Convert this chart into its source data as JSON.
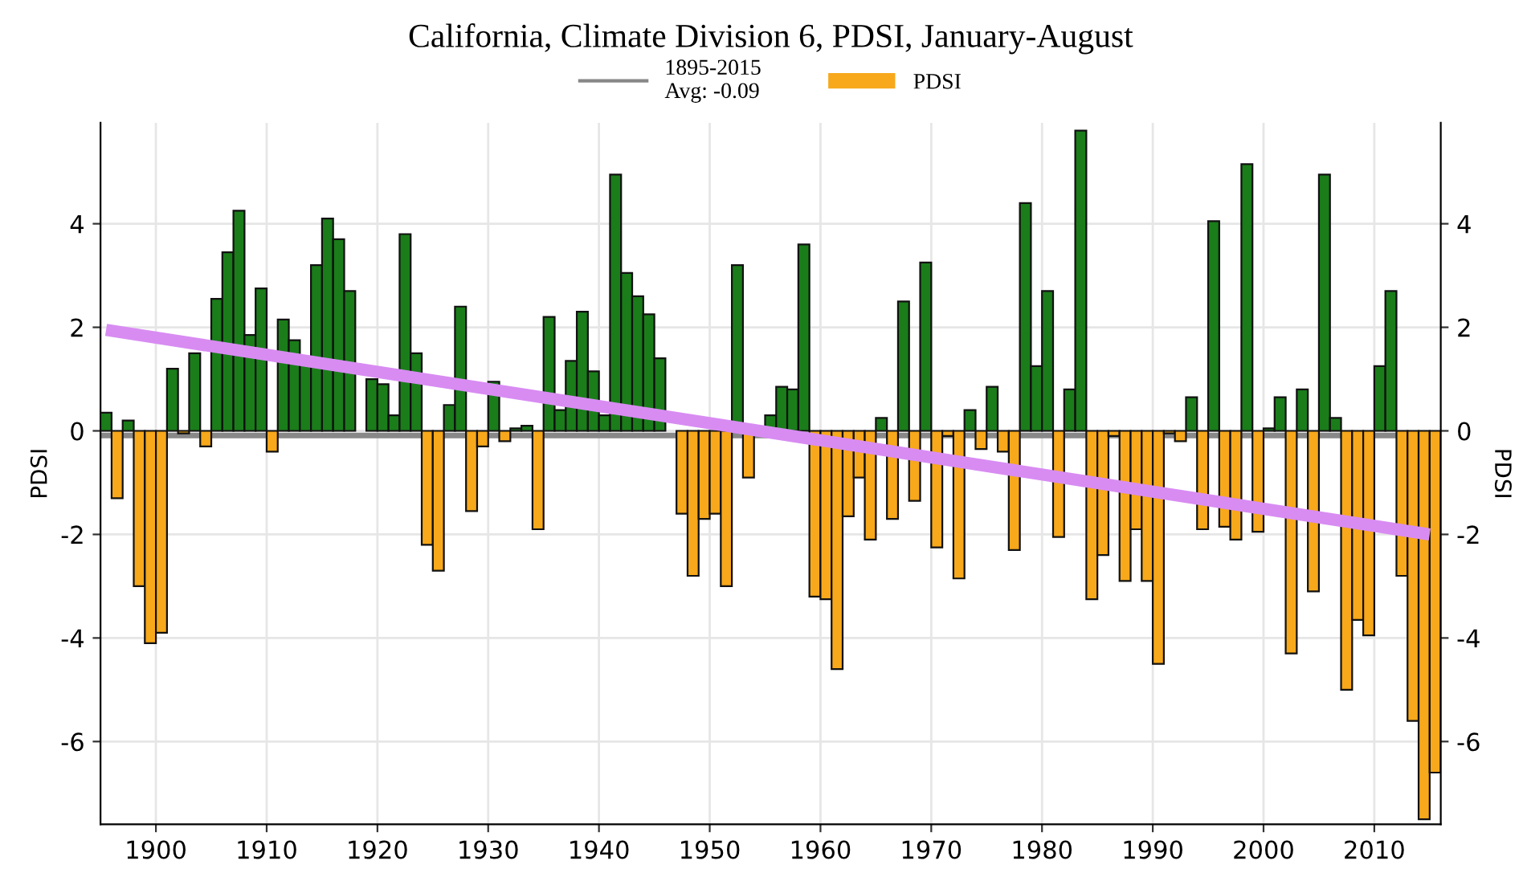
{
  "chart_data": {
    "type": "bar",
    "title": "California, Climate Division 6, PDSI, January-August",
    "ylabel": "PDSI",
    "y2label": "PDSI",
    "x": [
      1895,
      1896,
      1897,
      1898,
      1899,
      1900,
      1901,
      1902,
      1903,
      1904,
      1905,
      1906,
      1907,
      1908,
      1909,
      1910,
      1911,
      1912,
      1913,
      1914,
      1915,
      1916,
      1917,
      1918,
      1919,
      1920,
      1921,
      1922,
      1923,
      1924,
      1925,
      1926,
      1927,
      1928,
      1929,
      1930,
      1931,
      1932,
      1933,
      1934,
      1935,
      1936,
      1937,
      1938,
      1939,
      1940,
      1941,
      1942,
      1943,
      1944,
      1945,
      1946,
      1947,
      1948,
      1949,
      1950,
      1951,
      1952,
      1953,
      1954,
      1955,
      1956,
      1957,
      1958,
      1959,
      1960,
      1961,
      1962,
      1963,
      1964,
      1965,
      1966,
      1967,
      1968,
      1969,
      1970,
      1971,
      1972,
      1973,
      1974,
      1975,
      1976,
      1977,
      1978,
      1979,
      1980,
      1981,
      1982,
      1983,
      1984,
      1985,
      1986,
      1987,
      1988,
      1989,
      1990,
      1991,
      1992,
      1993,
      1994,
      1995,
      1996,
      1997,
      1998,
      1999,
      2000,
      2001,
      2002,
      2003,
      2004,
      2005,
      2006,
      2007,
      2008,
      2009,
      2010,
      2011,
      2012,
      2013,
      2014,
      2015
    ],
    "series": [
      {
        "name": "PDSI",
        "color": "#f7a81b",
        "values": [
          0.35,
          -1.3,
          0.2,
          -3.0,
          -4.1,
          -3.9,
          1.2,
          -0.05,
          1.5,
          -0.3,
          2.55,
          3.45,
          4.25,
          1.85,
          2.75,
          -0.4,
          2.15,
          1.75,
          1.3,
          3.2,
          4.1,
          3.7,
          2.7,
          null,
          1.0,
          0.9,
          0.3,
          3.8,
          1.5,
          -2.2,
          -2.7,
          0.5,
          2.4,
          -1.55,
          -0.3,
          0.95,
          -0.2,
          0.05,
          0.1,
          -1.9,
          2.2,
          0.4,
          1.35,
          2.3,
          1.15,
          0.3,
          4.95,
          3.05,
          2.6,
          2.25,
          1.4,
          null,
          -1.6,
          -2.8,
          -1.7,
          -1.6,
          -3.0,
          3.2,
          -0.9,
          null,
          0.3,
          0.85,
          0.8,
          3.6,
          -3.2,
          -3.25,
          -4.6,
          -1.65,
          -0.9,
          -2.1,
          0.25,
          -1.7,
          2.5,
          -1.35,
          3.25,
          -2.25,
          -0.1,
          -2.85,
          0.4,
          -0.35,
          0.85,
          -0.4,
          -2.3,
          4.4,
          1.25,
          2.7,
          -2.05,
          0.8,
          5.8,
          -3.25,
          -2.4,
          -0.1,
          -2.9,
          -1.9,
          -2.9,
          -4.5,
          -0.05,
          -0.2,
          0.65,
          -1.9,
          4.05,
          -1.85,
          -2.1,
          5.15,
          -1.95,
          0.05,
          0.65,
          -4.3,
          0.8,
          -3.1,
          4.95,
          0.25,
          -5.0,
          -3.65,
          -3.95,
          1.25,
          2.7,
          -2.8,
          -5.6,
          -7.5,
          -6.6
        ],
        "colors": [
          "#1a7d1a",
          "#f7a81b",
          "#1a7d1a",
          "#f7a81b",
          "#f7a81b",
          "#f7a81b",
          "#1a7d1a",
          "#f7a81b",
          "#1a7d1a",
          "#f7a81b",
          "#1a7d1a",
          "#1a7d1a",
          "#1a7d1a",
          "#1a7d1a",
          "#1a7d1a",
          "#f7a81b",
          "#1a7d1a",
          "#1a7d1a",
          "#1a7d1a",
          "#1a7d1a",
          "#1a7d1a",
          "#1a7d1a",
          "#1a7d1a",
          "#1a7d1a",
          "#1a7d1a",
          "#1a7d1a",
          "#1a7d1a",
          "#1a7d1a",
          "#1a7d1a",
          "#f7a81b",
          "#f7a81b",
          "#1a7d1a",
          "#1a7d1a",
          "#f7a81b",
          "#f7a81b",
          "#1a7d1a",
          "#f7a81b",
          "#1a7d1a",
          "#1a7d1a",
          "#f7a81b",
          "#1a7d1a",
          "#1a7d1a",
          "#1a7d1a",
          "#1a7d1a",
          "#1a7d1a",
          "#1a7d1a",
          "#1a7d1a",
          "#1a7d1a",
          "#1a7d1a",
          "#1a7d1a",
          "#1a7d1a",
          "#1a7d1a",
          "#f7a81b",
          "#f7a81b",
          "#f7a81b",
          "#f7a81b",
          "#f7a81b",
          "#1a7d1a",
          "#f7a81b",
          "#f7a81b",
          "#1a7d1a",
          "#1a7d1a",
          "#1a7d1a",
          "#1a7d1a",
          "#f7a81b",
          "#f7a81b",
          "#f7a81b",
          "#f7a81b",
          "#f7a81b",
          "#f7a81b",
          "#1a7d1a",
          "#f7a81b",
          "#1a7d1a",
          "#f7a81b",
          "#1a7d1a",
          "#f7a81b",
          "#f7a81b",
          "#f7a81b",
          "#1a7d1a",
          "#f7a81b",
          "#1a7d1a",
          "#f7a81b",
          "#f7a81b",
          "#1a7d1a",
          "#1a7d1a",
          "#1a7d1a",
          "#f7a81b",
          "#1a7d1a",
          "#1a7d1a",
          "#f7a81b",
          "#f7a81b",
          "#f7a81b",
          "#f7a81b",
          "#f7a81b",
          "#f7a81b",
          "#f7a81b",
          "#f7a81b",
          "#f7a81b",
          "#1a7d1a",
          "#f7a81b",
          "#1a7d1a",
          "#f7a81b",
          "#f7a81b",
          "#1a7d1a",
          "#f7a81b",
          "#1a7d1a",
          "#1a7d1a",
          "#f7a81b",
          "#1a7d1a",
          "#f7a81b",
          "#1a7d1a",
          "#1a7d1a",
          "#f7a81b",
          "#f7a81b",
          "#f7a81b",
          "#1a7d1a",
          "#1a7d1a",
          "#f7a81b",
          "#f7a81b",
          "#f7a81b",
          "#f7a81b"
        ]
      },
      {
        "type": "line",
        "color": "#d88cf2",
        "x": [
          1895.5,
          2015.0
        ],
        "values": [
          1.95,
          -2.0
        ]
      }
    ],
    "ref_lines": [
      {
        "axis": "y",
        "value": -0.09,
        "label": "1895-2015\nAvg: -0.09",
        "color": "#888888",
        "line_style": "solid"
      }
    ],
    "xlim": [
      1895,
      2016
    ],
    "xticks": [
      1900,
      1910,
      1920,
      1930,
      1940,
      1950,
      1960,
      1970,
      1980,
      1990,
      2000,
      2010
    ],
    "ylim": [
      -7.6,
      5.95
    ],
    "yticks": [
      -6,
      -4,
      -2,
      0,
      2,
      4
    ],
    "y2lim": [
      -7.6,
      5.95
    ],
    "y2ticks": [
      -6,
      -4,
      -2,
      0,
      2,
      4
    ],
    "grid": true,
    "legend": "top"
  }
}
